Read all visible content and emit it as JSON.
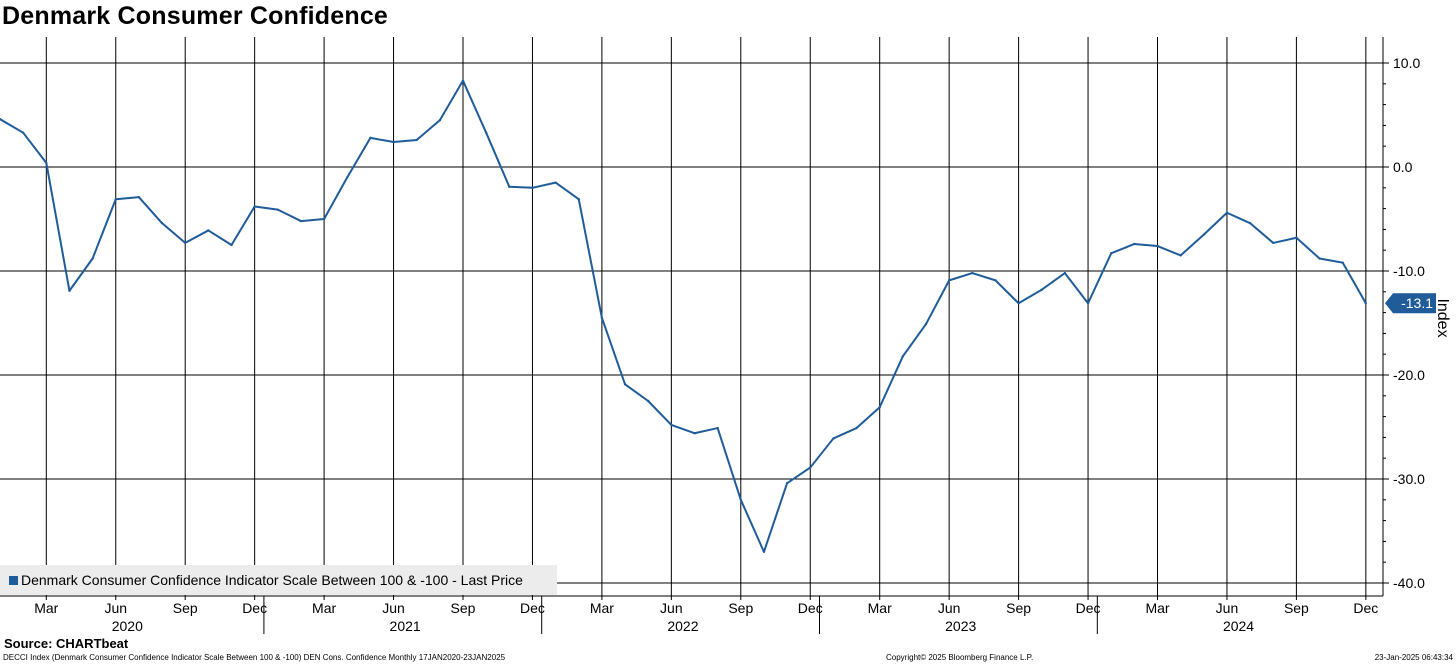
{
  "title": "Denmark Consumer Confidence",
  "source": "Source: CHARTbeat",
  "footer": {
    "description": "DECCI Index (Denmark Consumer Confidence Indicator Scale Between 100 & -100) DEN Cons. Confidence  Monthly 17JAN2020-23JAN2025",
    "copyright": "Copyright© 2025 Bloomberg Finance L.P.",
    "timestamp": "23-Jan-2025 06:43:34"
  },
  "colors": {
    "line": "#1f5c99",
    "grid": "#000000",
    "legend_bg": "#ececec"
  },
  "chart_data": {
    "type": "line",
    "legend": "Denmark Consumer Confidence Indicator Scale Between 100 & -100 - Last Price",
    "ylabel": "Index",
    "ylim": [
      -40,
      10
    ],
    "yticks": [
      "10.0",
      "0.0",
      "-10.0",
      "-20.0",
      "-30.0",
      "-40.0"
    ],
    "last_value_label": "-13.1",
    "xtick_months": [
      "Mar",
      "Jun",
      "Sep",
      "Dec",
      "Mar",
      "Jun",
      "Sep",
      "Dec",
      "Mar",
      "Jun",
      "Sep",
      "Dec",
      "Mar",
      "Jun",
      "Sep",
      "Dec",
      "Mar",
      "Jun",
      "Sep",
      "Dec"
    ],
    "xtick_years": [
      "2020",
      "2021",
      "2022",
      "2023",
      "2024"
    ],
    "series": [
      {
        "name": "Denmark Consumer Confidence Indicator Scale Between 100 & -100",
        "x": [
          "2020-01",
          "2020-02",
          "2020-03",
          "2020-04",
          "2020-05",
          "2020-06",
          "2020-07",
          "2020-08",
          "2020-09",
          "2020-10",
          "2020-11",
          "2020-12",
          "2021-01",
          "2021-02",
          "2021-03",
          "2021-04",
          "2021-05",
          "2021-06",
          "2021-07",
          "2021-08",
          "2021-09",
          "2021-10",
          "2021-11",
          "2021-12",
          "2022-01",
          "2022-02",
          "2022-03",
          "2022-04",
          "2022-05",
          "2022-06",
          "2022-07",
          "2022-08",
          "2022-09",
          "2022-10",
          "2022-11",
          "2022-12",
          "2023-01",
          "2023-02",
          "2023-03",
          "2023-04",
          "2023-05",
          "2023-06",
          "2023-07",
          "2023-08",
          "2023-09",
          "2023-10",
          "2023-11",
          "2023-12",
          "2024-01",
          "2024-02",
          "2024-03",
          "2024-04",
          "2024-05",
          "2024-06",
          "2024-07",
          "2024-08",
          "2024-09",
          "2024-10",
          "2024-11",
          "2024-12"
        ],
        "values": [
          4.6,
          3.3,
          0.4,
          -11.9,
          -8.8,
          -3.1,
          -2.9,
          -5.4,
          -7.3,
          -6.1,
          -7.5,
          -3.8,
          -4.1,
          -5.2,
          -5.0,
          -1.0,
          2.8,
          2.4,
          2.6,
          4.5,
          8.3,
          3.3,
          -1.9,
          -2.0,
          -1.5,
          -3.1,
          -14.5,
          -20.9,
          -22.5,
          -24.8,
          -25.6,
          -25.1,
          -32.0,
          -37.0,
          -30.4,
          -28.9,
          -26.1,
          -25.1,
          -23.1,
          -18.2,
          -15.1,
          -10.9,
          -10.2,
          -10.9,
          -13.1,
          -11.8,
          -10.2,
          -13.1,
          -8.3,
          -7.4,
          -7.6,
          -8.5,
          -6.5,
          -4.4,
          -5.4,
          -7.3,
          -6.8,
          -8.8,
          -9.2,
          -13.1
        ]
      }
    ]
  }
}
